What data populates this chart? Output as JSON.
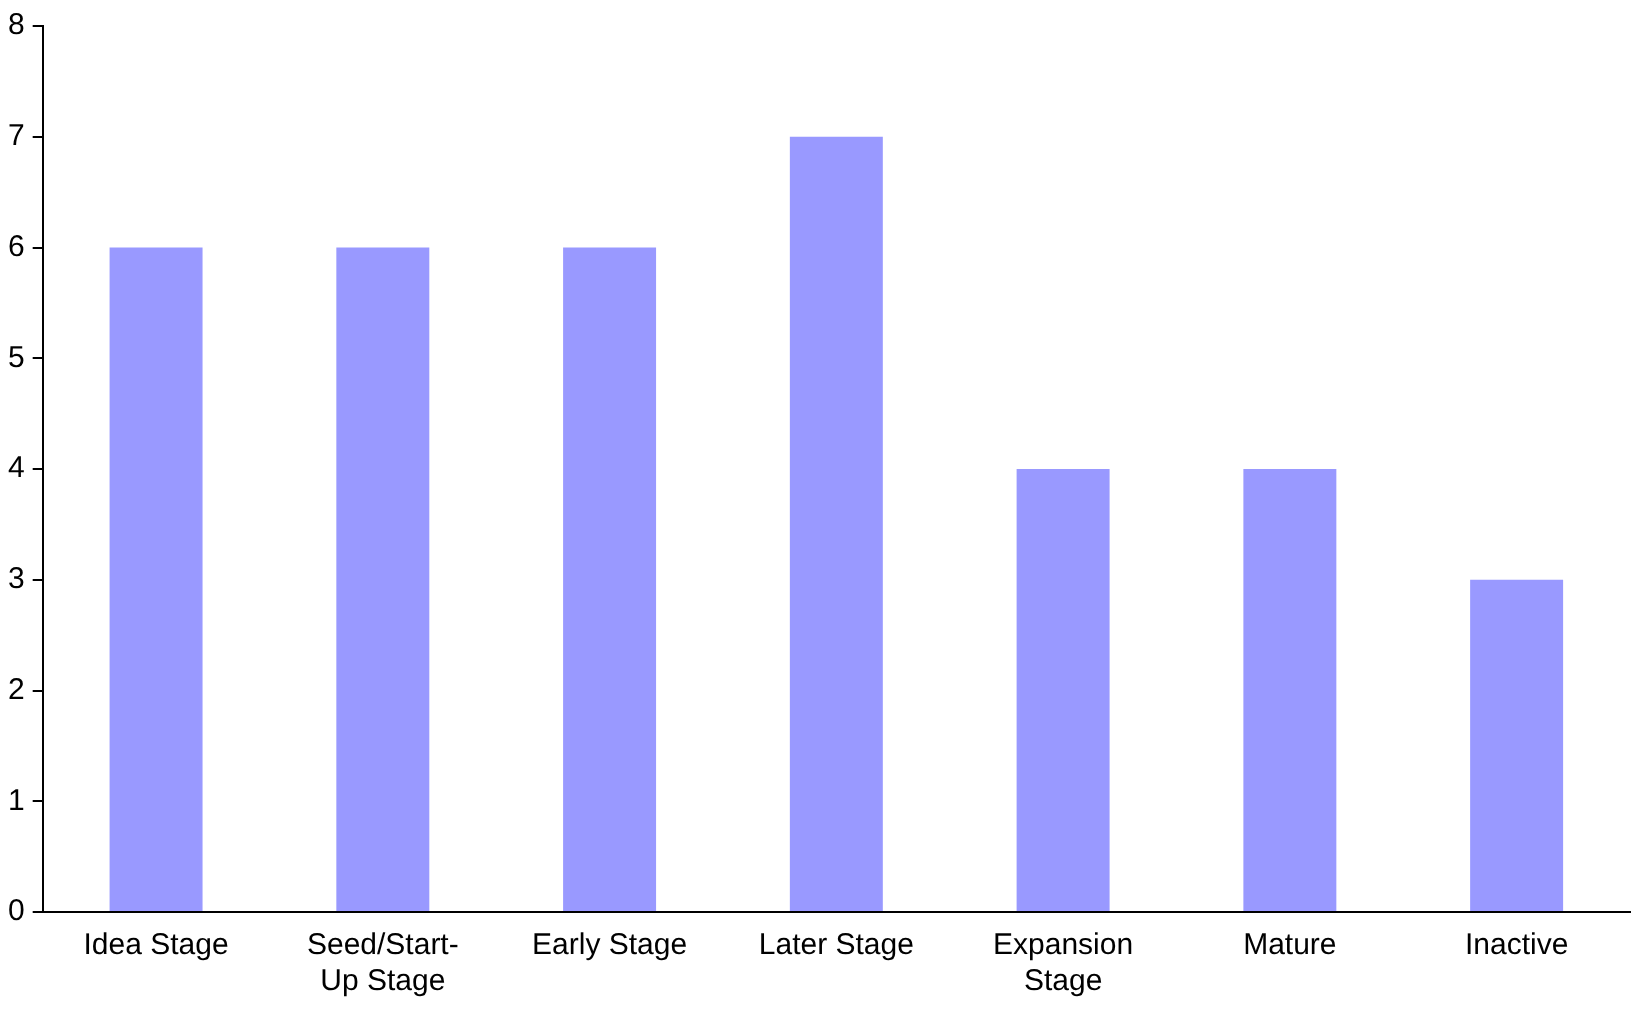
{
  "chart_data": {
    "type": "bar",
    "categories": [
      "Idea Stage",
      "Seed/Start-Up Stage",
      "Early Stage",
      "Later Stage",
      "Expansion Stage",
      "Mature",
      "Inactive"
    ],
    "values": [
      6,
      6,
      6,
      7,
      4,
      4,
      3
    ],
    "color": "#9999ff",
    "ylim": [
      0,
      8
    ],
    "yticks": [
      0,
      1,
      2,
      3,
      4,
      5,
      6,
      7,
      8
    ],
    "grid": false,
    "legend": false
  }
}
